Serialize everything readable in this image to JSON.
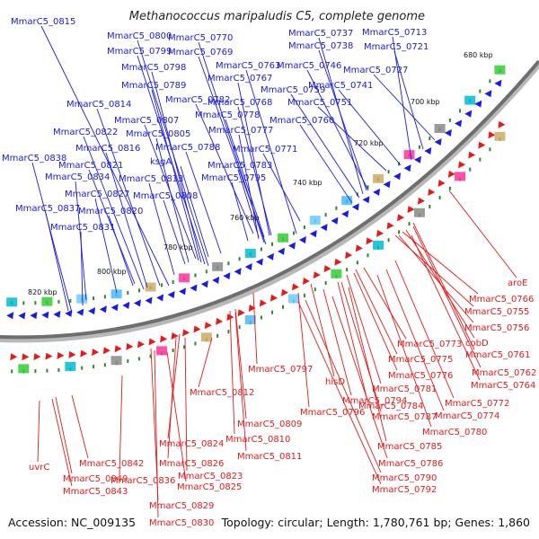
{
  "title": "Methanococcus maripaludis C5, complete genome",
  "footer": {
    "accession": "Accession: NC_009135",
    "summary": "Topology: circular; Length: 1,780,761 bp; Genes: 1,860"
  },
  "colors": {
    "forward": "#1a1ae6",
    "reverse": "#e61a1a",
    "backbone": "#808080",
    "tick": "#2a8a2a"
  },
  "kbp_markers": [
    "680 kbp",
    "700 kbp",
    "720 kbp",
    "740 kbp",
    "760 kbp",
    "780 kbp",
    "800 kbp",
    "820 kbp"
  ],
  "forward_labels": [
    "MmarC5_0815",
    "MmarC5_0800",
    "MmarC5_0770",
    "MmarC5_0737",
    "MmarC5_0713",
    "MmarC5_0799",
    "MmarC5_0769",
    "MmarC5_0738",
    "MmarC5_0721",
    "MmarC5_0798",
    "MmarC5_0763",
    "MmarC5_0746",
    "MmarC5_0727",
    "MmarC5_0789",
    "MmarC5_0767",
    "MmarC5_0741",
    "MmarC5_0782",
    "MmarC5_0768",
    "MmarC5_0759",
    "MmarC5_0814",
    "MmarC5_0778",
    "MmarC5_0751",
    "MmarC5_0807",
    "MmarC5_0760",
    "MmarC5_0822",
    "MmarC5_0805",
    "MmarC5_0777",
    "MmarC5_0816",
    "MmarC5_0788",
    "MmarC5_0771",
    "MmarC5_0838",
    "MmarC5_0821",
    "ksgA",
    "MmarC5_0783",
    "MmarC5_0834",
    "MmarC5_0813",
    "MmarC5_0795",
    "MmarC5_0827",
    "MmarC5_0808",
    "MmarC5_0837",
    "MmarC5_0820",
    "MmarC5_0831"
  ],
  "reverse_labels": [
    "aroE",
    "MmarC5_0766",
    "MmarC5_0755",
    "MmarC5_0756",
    "cobD",
    "MmarC5_0773",
    "MmarC5_0761",
    "MmarC5_0775",
    "MmarC5_0762",
    "MmarC5_0797",
    "MmarC5_0776",
    "MmarC5_0764",
    "hisD",
    "MmarC5_0781",
    "MmarC5_0812",
    "MmarC5_0794",
    "MmarC5_0784",
    "MmarC5_0772",
    "MmarC5_0796",
    "MmarC5_0787",
    "MmarC5_0774",
    "MmarC5_0809",
    "MmarC5_0780",
    "MmarC5_0810",
    "MmarC5_0785",
    "MmarC5_0811",
    "MmarC5_0824",
    "uvrC",
    "MmarC5_0842",
    "MmarC5_0786",
    "MmarC5_0826",
    "MmarC5_0849",
    "MmarC5_0790",
    "MmarC5_0823",
    "MmarC5_0836",
    "MmarC5_0843",
    "MmarC5_0792",
    "MmarC5_0825",
    "MmarC5_0829",
    "MmarC5_0830"
  ]
}
